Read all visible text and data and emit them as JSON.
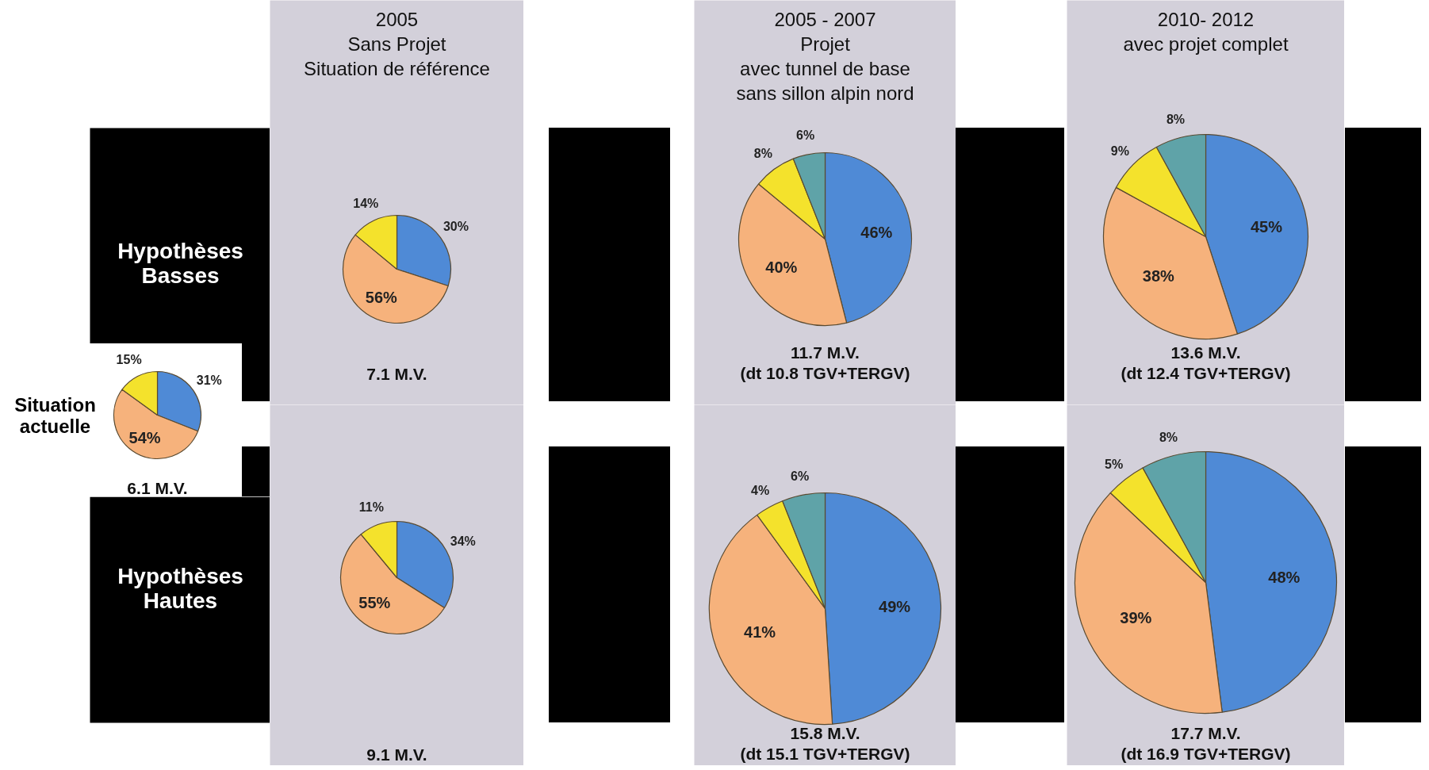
{
  "chart_data": [
    {
      "type": "other",
      "title": "Hypothèses\nBasses"
    },
    {
      "type": "pie",
      "title": "Situation\nactuelle",
      "categories": [
        null,
        null,
        null
      ],
      "values": [
        31,
        54,
        15
      ],
      "colors": [
        "#4f8ad6",
        "#f6b27c",
        "#f4e22c"
      ],
      "value_labels": [
        "31%",
        "54%",
        "15%"
      ],
      "annotations": [
        "6.1 M.V."
      ]
    },
    {
      "type": "other",
      "title": "Hypothèses\nHautes"
    },
    {
      "type": "pie",
      "title": "2005\nSans Projet\nSituation de référence",
      "categories": [
        null,
        null,
        null
      ],
      "values": [
        30,
        56,
        14
      ],
      "colors": [
        "#4f8ad6",
        "#f6b27c",
        "#f4e22c"
      ],
      "value_labels": [
        "30%",
        "56%",
        "14%"
      ],
      "annotations": [
        "7.1 M.V."
      ]
    },
    {
      "type": "pie",
      "categories": [
        null,
        null,
        null
      ],
      "values": [
        34,
        55,
        11
      ],
      "colors": [
        "#4f8ad6",
        "#f6b27c",
        "#f4e22c"
      ],
      "value_labels": [
        "34%",
        "55%",
        "11%"
      ],
      "annotations": [
        "9.1 M.V."
      ]
    },
    {
      "type": "pie",
      "title": "2005 - 2007\nProjet\navec tunnel de base\nsans sillon alpin nord",
      "categories": [
        null,
        null,
        null,
        null
      ],
      "values": [
        46,
        40,
        8,
        6
      ],
      "colors": [
        "#4f8ad6",
        "#f6b27c",
        "#f4e22c",
        "#5fa3a8"
      ],
      "value_labels": [
        "46%",
        "40%",
        "8%",
        "6%"
      ],
      "annotations": [
        "11.7 M.V.\n(dt 10.8 TGV+TERGV)"
      ]
    },
    {
      "type": "pie",
      "categories": [
        null,
        null,
        null,
        null
      ],
      "values": [
        49,
        41,
        4,
        6
      ],
      "colors": [
        "#4f8ad6",
        "#f6b27c",
        "#f4e22c",
        "#5fa3a8"
      ],
      "value_labels": [
        "49%",
        "41%",
        "4%",
        "6%"
      ],
      "annotations": [
        "15.8 M.V.\n(dt 15.1 TGV+TERGV)"
      ]
    },
    {
      "type": "pie",
      "title": "2010- 2012\navec projet complet",
      "categories": [
        null,
        null,
        null,
        null
      ],
      "values": [
        45,
        38,
        9,
        8
      ],
      "colors": [
        "#4f8ad6",
        "#f6b27c",
        "#f4e22c",
        "#5fa3a8"
      ],
      "value_labels": [
        "45%",
        "38%",
        "9%",
        "8%"
      ],
      "annotations": [
        "13.6 M.V.\n(dt 12.4 TGV+TERGV)"
      ]
    },
    {
      "type": "pie",
      "categories": [
        null,
        null,
        null,
        null
      ],
      "values": [
        48,
        39,
        5,
        8
      ],
      "colors": [
        "#4f8ad6",
        "#f6b27c",
        "#f4e22c",
        "#5fa3a8"
      ],
      "value_labels": [
        "48%",
        "39%",
        "5%",
        "8%"
      ],
      "annotations": [
        "17.7 M.V.\n(dt 16.9 TGV+TERGV)"
      ]
    }
  ]
}
